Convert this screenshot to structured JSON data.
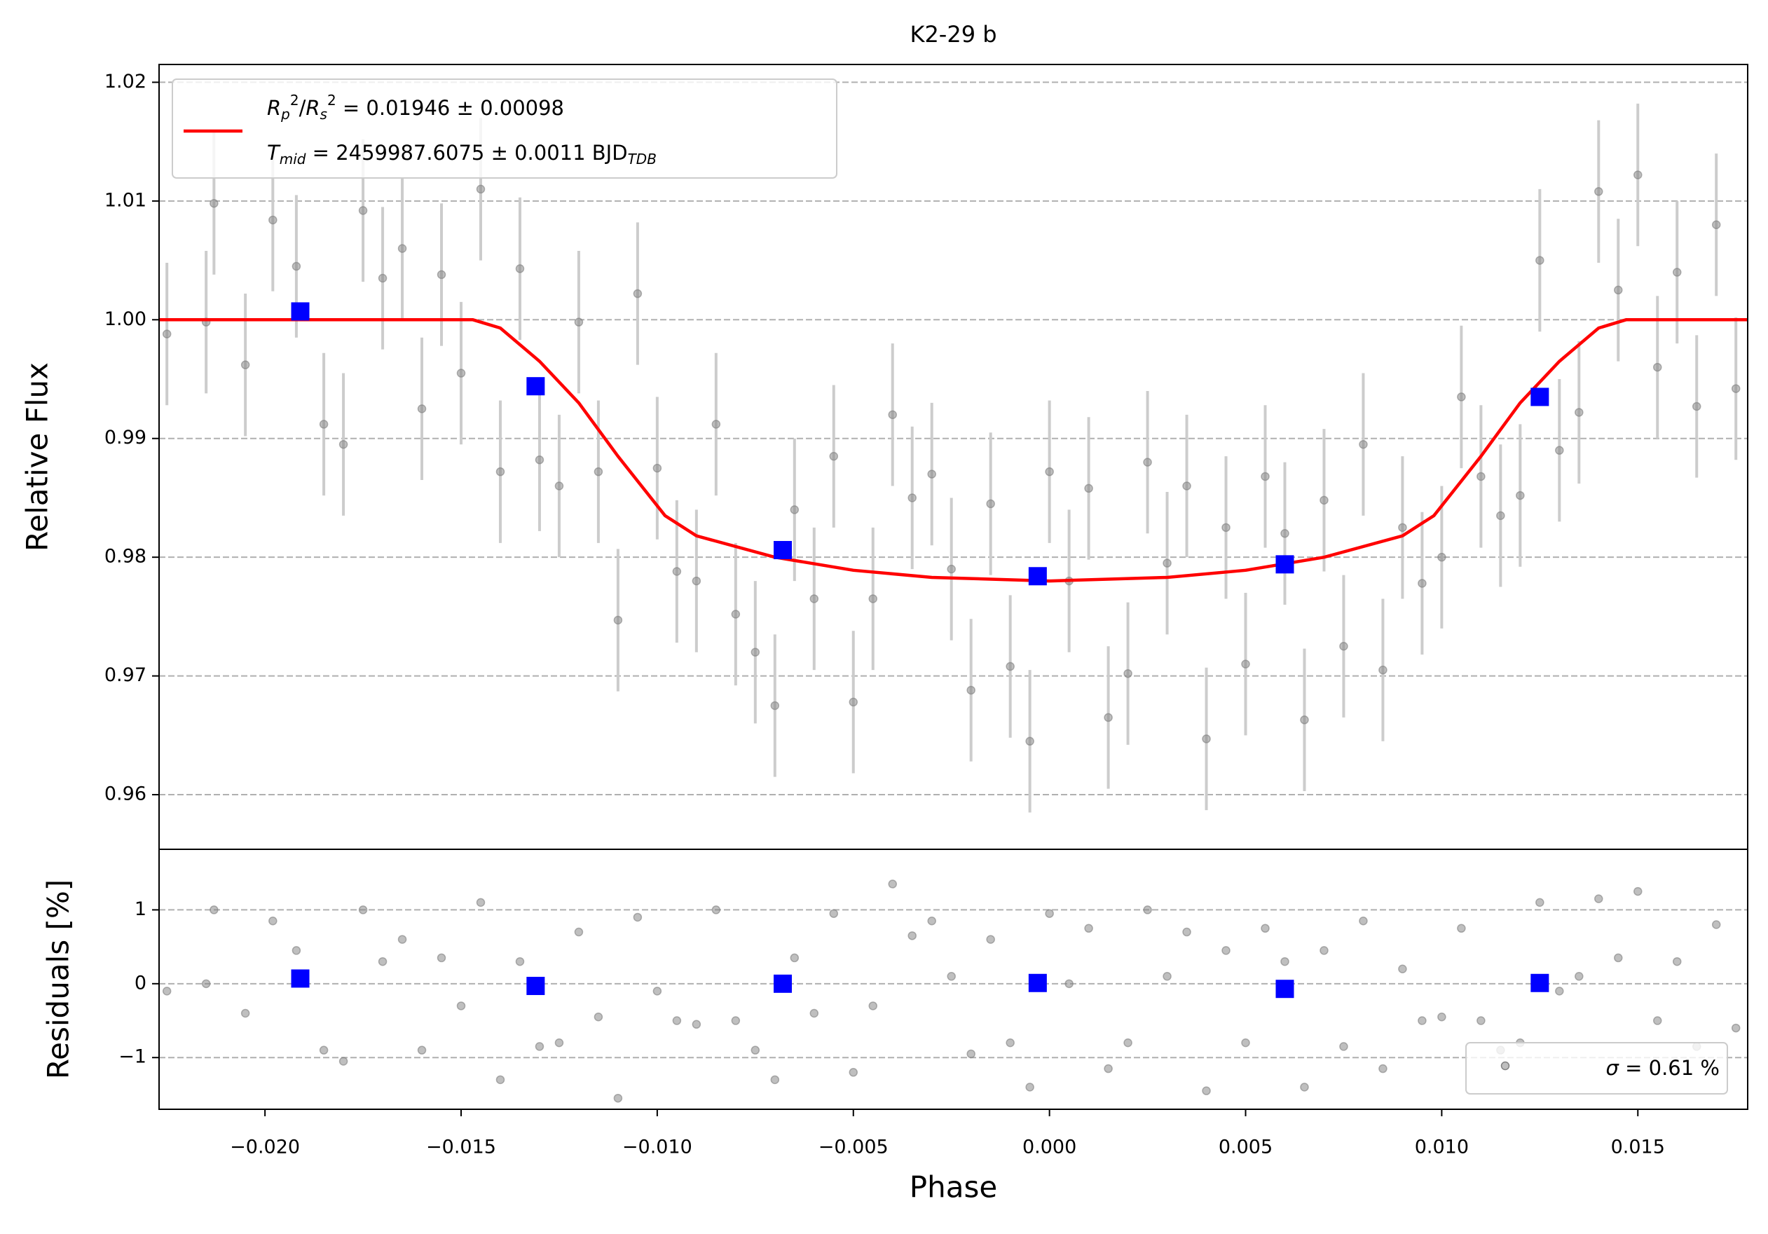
{
  "chart_data": [
    {
      "type": "scatter",
      "title": "K2-29 b",
      "ylabel": "Relative Flux",
      "xlim": [
        -0.0227,
        0.0178
      ],
      "ylim": [
        0.9554,
        1.0215
      ],
      "yticks": [
        0.96,
        0.97,
        0.98,
        0.99,
        {
          "value": 1,
          "label": "1.00"
        },
        1.01,
        1.02
      ],
      "grid": true,
      "legend_loc": "upper left",
      "series": [
        {
          "type": "errorbar",
          "color": "#808080",
          "ecolor": "#cccccc",
          "yerr": 0.006,
          "x": [
            -0.0225,
            -0.0215,
            -0.0213,
            -0.0205,
            -0.0198,
            -0.0192,
            -0.0185,
            -0.018,
            -0.0175,
            -0.017,
            -0.0165,
            -0.016,
            -0.0155,
            -0.015,
            -0.0145,
            -0.014,
            -0.0135,
            -0.013,
            -0.0125,
            -0.012,
            -0.0115,
            -0.011,
            -0.0105,
            -0.01,
            -0.0095,
            -0.009,
            -0.0085,
            -0.008,
            -0.0075,
            -0.007,
            -0.0065,
            -0.006,
            -0.0055,
            -0.005,
            -0.0045,
            -0.004,
            -0.0035,
            -0.003,
            -0.0025,
            -0.002,
            -0.0015,
            -0.001,
            -0.0005,
            0,
            0.0005,
            0.001,
            0.0015,
            0.002,
            0.0025,
            0.003,
            0.0035,
            0.004,
            0.0045,
            0.005,
            0.0055,
            0.006,
            0.0065,
            0.007,
            0.0075,
            0.008,
            0.0085,
            0.009,
            0.0095,
            0.01,
            0.0105,
            0.011,
            0.0115,
            0.012,
            0.0125,
            0.013,
            0.0135,
            0.014,
            0.0145,
            0.015,
            0.0155,
            0.016,
            0.0165,
            0.017,
            0.0175
          ],
          "values": [
            0.9988,
            0.9998,
            1.0098,
            0.9962,
            1.0084,
            1.0045,
            0.9912,
            0.9895,
            1.0092,
            1.0035,
            1.006,
            0.9925,
            1.0038,
            0.9955,
            1.011,
            0.9872,
            1.0043,
            0.9882,
            0.986,
            0.9998,
            0.9872,
            0.9747,
            1.0022,
            0.9875,
            0.9788,
            0.978,
            0.9912,
            0.9752,
            0.972,
            0.9675,
            0.984,
            0.9765,
            0.9885,
            0.9678,
            0.9765,
            0.992,
            0.985,
            0.987,
            0.979,
            0.9688,
            0.9845,
            0.9708,
            0.9645,
            0.9872,
            0.978,
            0.9858,
            0.9665,
            0.9702,
            0.988,
            0.9795,
            0.986,
            0.9647,
            0.9825,
            0.971,
            0.9868,
            0.982,
            0.9663,
            0.9848,
            0.9725,
            0.9895,
            0.9705,
            0.9825,
            0.9778,
            0.98,
            0.9935,
            0.9868,
            0.9835,
            0.9852,
            1.005,
            0.989,
            0.9922,
            1.0108,
            1.0025,
            1.0122,
            0.996,
            1.004,
            0.9927,
            1.008,
            0.9942
          ]
        },
        {
          "type": "line",
          "color": "#ff0000",
          "name_parts": [
            [
              {
                "text": "R",
                "italic": true
              },
              {
                "text": "p",
                "italic": true,
                "shift": "sub"
              },
              {
                "text": "2",
                "shift": "sup"
              },
              {
                "text": "/"
              },
              {
                "text": "R",
                "italic": true
              },
              {
                "text": "s",
                "italic": true,
                "shift": "sub"
              },
              {
                "text": "2",
                "shift": "sup"
              },
              {
                "text": " = 0.01946 ± 0.00098"
              }
            ],
            [
              {
                "text": "T",
                "italic": true
              },
              {
                "text": "mid",
                "italic": true,
                "shift": "sub"
              },
              {
                "text": " = 2459987.6075 ± 0.0011 BJD"
              },
              {
                "text": "TDB",
                "italic": true,
                "shift": "sub"
              }
            ]
          ],
          "x": [
            -0.0227,
            -0.0147,
            -0.014,
            -0.013,
            -0.012,
            -0.011,
            -0.0098,
            -0.009,
            -0.007,
            -0.005,
            -0.003,
            0,
            0.003,
            0.005,
            0.007,
            0.009,
            0.0098,
            0.011,
            0.012,
            0.013,
            0.014,
            0.0147,
            0.0178
          ],
          "values": [
            1,
            1,
            0.9993,
            0.9965,
            0.993,
            0.9885,
            0.9835,
            0.9818,
            0.98,
            0.9789,
            0.9783,
            0.978,
            0.9783,
            0.9789,
            0.98,
            0.9818,
            0.9835,
            0.9885,
            0.993,
            0.9965,
            0.9993,
            1,
            1
          ]
        },
        {
          "type": "square",
          "color": "#0000ff",
          "ecolor": "#0000ff",
          "yerr": 0.0007,
          "x": [
            -0.0191,
            -0.0131,
            -0.0068,
            -0.0003,
            0.006,
            0.0125
          ],
          "values": [
            1.0007,
            0.9944,
            0.9806,
            0.9784,
            0.9794,
            0.9935
          ]
        }
      ]
    },
    {
      "type": "scatter",
      "ylabel": "Residuals [%]",
      "xlabel": "Phase",
      "xlim": [
        -0.0227,
        0.0178
      ],
      "ylim": [
        -1.7,
        1.82
      ],
      "xticks": [
        {
          "value": -0.02,
          "label": "−0.020"
        },
        {
          "value": -0.015,
          "label": "−0.015"
        },
        {
          "value": -0.01,
          "label": "−0.010"
        },
        {
          "value": -0.005,
          "label": "−0.005"
        },
        {
          "value": 0,
          "label": "0.000"
        },
        0.005,
        {
          "value": 0.01,
          "label": "0.010"
        },
        0.015
      ],
      "yticks": [
        {
          "value": -1,
          "label": "−1"
        },
        0,
        1
      ],
      "grid": true,
      "legend_loc": "lower right",
      "series": [
        {
          "type": "errorbar",
          "color": "#808080",
          "name_parts": [
            [
              {
                "text": "σ",
                "italic": true
              },
              {
                "text": " = 0.61 %"
              }
            ]
          ],
          "x": [
            -0.0225,
            -0.0215,
            -0.0213,
            -0.0205,
            -0.0198,
            -0.0192,
            -0.0185,
            -0.018,
            -0.0175,
            -0.017,
            -0.0165,
            -0.016,
            -0.0155,
            -0.015,
            -0.0145,
            -0.014,
            -0.0135,
            -0.013,
            -0.0125,
            -0.012,
            -0.0115,
            -0.011,
            -0.0105,
            -0.01,
            -0.0095,
            -0.009,
            -0.0085,
            -0.008,
            -0.0075,
            -0.007,
            -0.0065,
            -0.006,
            -0.0055,
            -0.005,
            -0.0045,
            -0.004,
            -0.0035,
            -0.003,
            -0.0025,
            -0.002,
            -0.0015,
            -0.001,
            -0.0005,
            0,
            0.0005,
            0.001,
            0.0015,
            0.002,
            0.0025,
            0.003,
            0.0035,
            0.004,
            0.0045,
            0.005,
            0.0055,
            0.006,
            0.0065,
            0.007,
            0.0075,
            0.008,
            0.0085,
            0.009,
            0.0095,
            0.01,
            0.0105,
            0.011,
            0.0115,
            0.012,
            0.0125,
            0.013,
            0.0135,
            0.014,
            0.0145,
            0.015,
            0.0155,
            0.016,
            0.0165,
            0.017,
            0.0175
          ],
          "values": [
            -0.1,
            0.0,
            1.0,
            -0.4,
            0.85,
            0.45,
            -0.9,
            -1.05,
            1.0,
            0.3,
            0.6,
            -0.9,
            0.35,
            -0.3,
            1.1,
            -1.3,
            0.3,
            -0.85,
            -0.8,
            0.7,
            -0.45,
            -1.55,
            0.9,
            -0.1,
            -0.5,
            -0.55,
            1.0,
            -0.5,
            -0.9,
            -1.3,
            0.35,
            -0.4,
            0.95,
            -1.2,
            -0.3,
            1.35,
            0.65,
            0.85,
            0.1,
            -0.95,
            0.6,
            -0.8,
            -1.4,
            0.95,
            0.0,
            0.75,
            -1.15,
            -0.8,
            1.0,
            0.1,
            0.7,
            -1.45,
            0.45,
            -0.8,
            0.75,
            0.3,
            -1.4,
            0.45,
            -0.85,
            0.85,
            -1.15,
            0.2,
            -0.5,
            -0.45,
            0.75,
            -0.5,
            -0.9,
            -0.8,
            1.1,
            -0.1,
            0.1,
            1.15,
            0.35,
            1.25,
            -0.5,
            0.3,
            -0.85,
            0.8,
            -0.6
          ]
        },
        {
          "type": "square",
          "color": "#0000ff",
          "x": [
            -0.0191,
            -0.0131,
            -0.0068,
            -0.0003,
            0.006,
            0.0125
          ],
          "values": [
            0.07,
            -0.03,
            0.0,
            0.01,
            -0.07,
            0.01
          ]
        }
      ]
    }
  ]
}
